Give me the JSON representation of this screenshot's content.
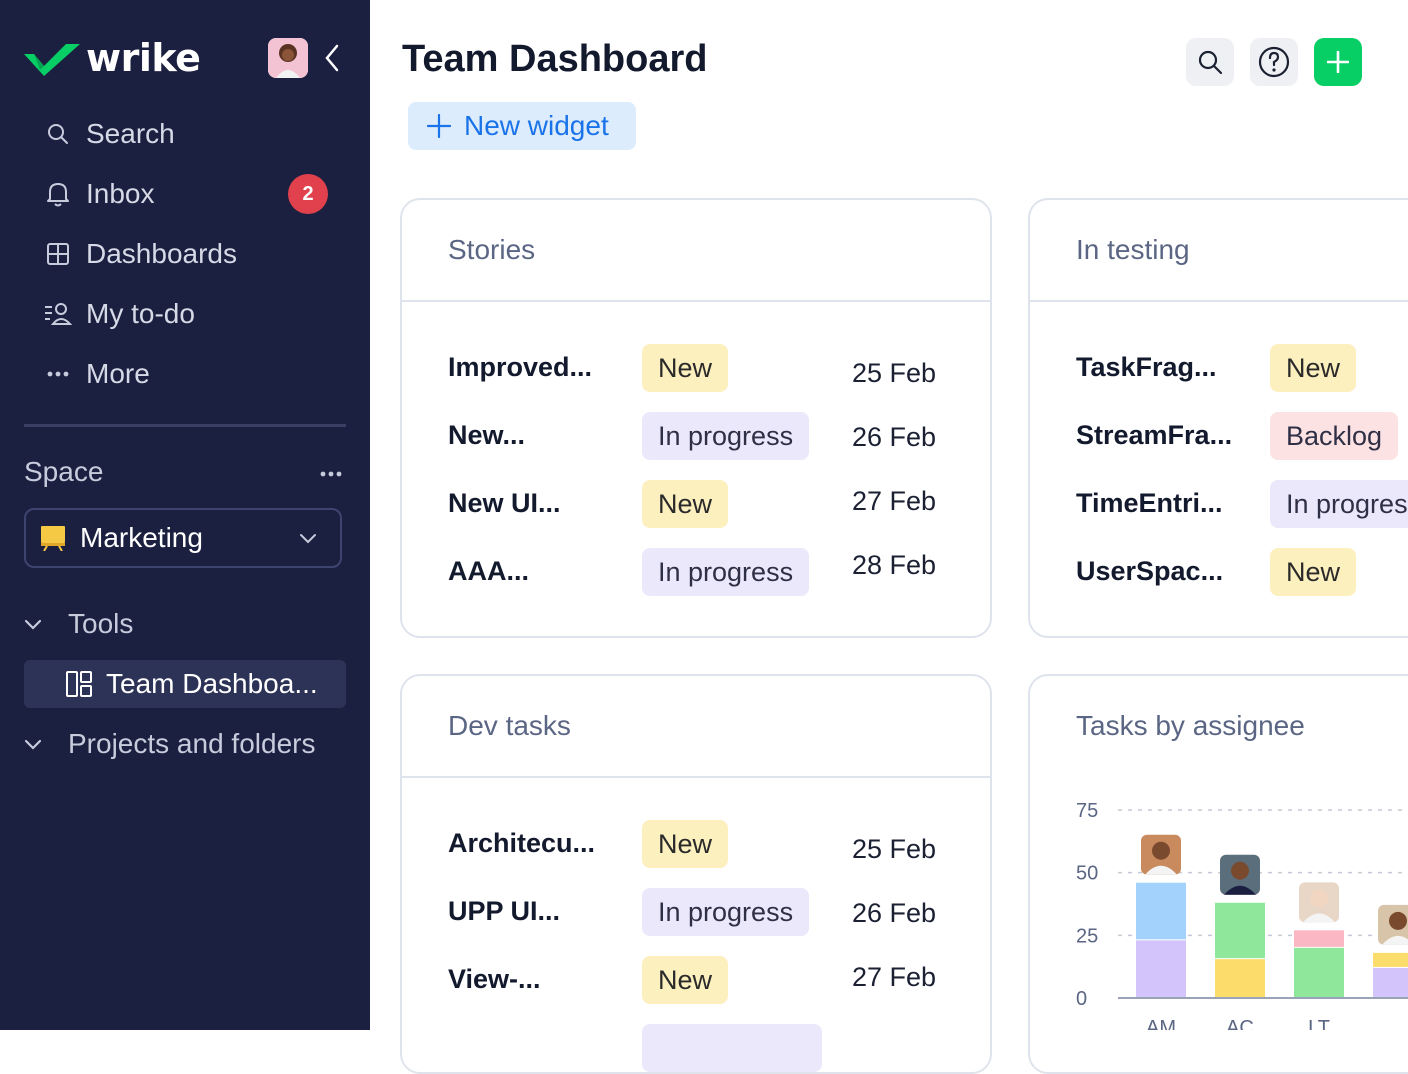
{
  "app": {
    "logo_text": "wrike",
    "brand_color": "#08cf65",
    "sidebar_bg": "#1c2040"
  },
  "sidebar": {
    "nav": [
      {
        "label": "Search",
        "icon": "search-icon"
      },
      {
        "label": "Inbox",
        "icon": "bell-icon",
        "badge": "2"
      },
      {
        "label": "Dashboards",
        "icon": "dashboards-icon"
      },
      {
        "label": "My to-do",
        "icon": "todo-icon"
      },
      {
        "label": "More",
        "icon": "more-dots-icon"
      }
    ],
    "space_label": "Space",
    "space_selected": "Marketing",
    "tree": {
      "tools_label": "Tools",
      "active_item": "Team Dashboa...",
      "projects_label": "Projects and folders"
    }
  },
  "header": {
    "title": "Team Dashboard",
    "new_widget_label": "New widget"
  },
  "widgets": {
    "stories": {
      "title": "Stories",
      "rows": [
        {
          "name": "Improved...",
          "status": "New",
          "date": "25 Feb"
        },
        {
          "name": "New...",
          "status": "In progress",
          "date": "26 Feb"
        },
        {
          "name": "New UI...",
          "status": "New",
          "date": "27 Feb"
        },
        {
          "name": "AAA...",
          "status": "In progress",
          "date": "28 Feb"
        }
      ]
    },
    "in_testing": {
      "title": "In testing",
      "rows": [
        {
          "name": "TaskFrag...",
          "status": "New"
        },
        {
          "name": "StreamFra...",
          "status": "Backlog"
        },
        {
          "name": "TimeEntri...",
          "status": "In progres"
        },
        {
          "name": "UserSpac...",
          "status": "New"
        }
      ]
    },
    "dev_tasks": {
      "title": "Dev tasks",
      "rows": [
        {
          "name": "Architecu...",
          "status": "New",
          "date": "25 Feb"
        },
        {
          "name": "UPP UI...",
          "status": "In progress",
          "date": "26 Feb"
        },
        {
          "name": "View-...",
          "status": "New",
          "date": "27 Feb"
        }
      ]
    },
    "tasks_by_assignee": {
      "title": "Tasks by assignee"
    }
  },
  "chart_data": {
    "type": "bar",
    "title": "Tasks by assignee",
    "categories": [
      "AM",
      "AC",
      "LT",
      ""
    ],
    "ylim": [
      0,
      75
    ],
    "yticks": [
      "75",
      "50",
      "25",
      "0"
    ],
    "grid": true,
    "stacks": [
      {
        "segments": [
          {
            "value": 23,
            "color": "#d3c5fb"
          },
          {
            "value": 23,
            "color": "#a3d3fc"
          }
        ]
      },
      {
        "segments": [
          {
            "value": 15.5,
            "color": "#fcdc6b"
          },
          {
            "value": 22.5,
            "color": "#8ee79a"
          }
        ]
      },
      {
        "segments": [
          {
            "value": 20,
            "color": "#8ee79a"
          },
          {
            "value": 7,
            "color": "#fbb8c4"
          }
        ]
      },
      {
        "segments": [
          {
            "value": 12,
            "color": "#d3c5fb"
          },
          {
            "value": 6,
            "color": "#fcdc6b"
          }
        ]
      }
    ]
  }
}
